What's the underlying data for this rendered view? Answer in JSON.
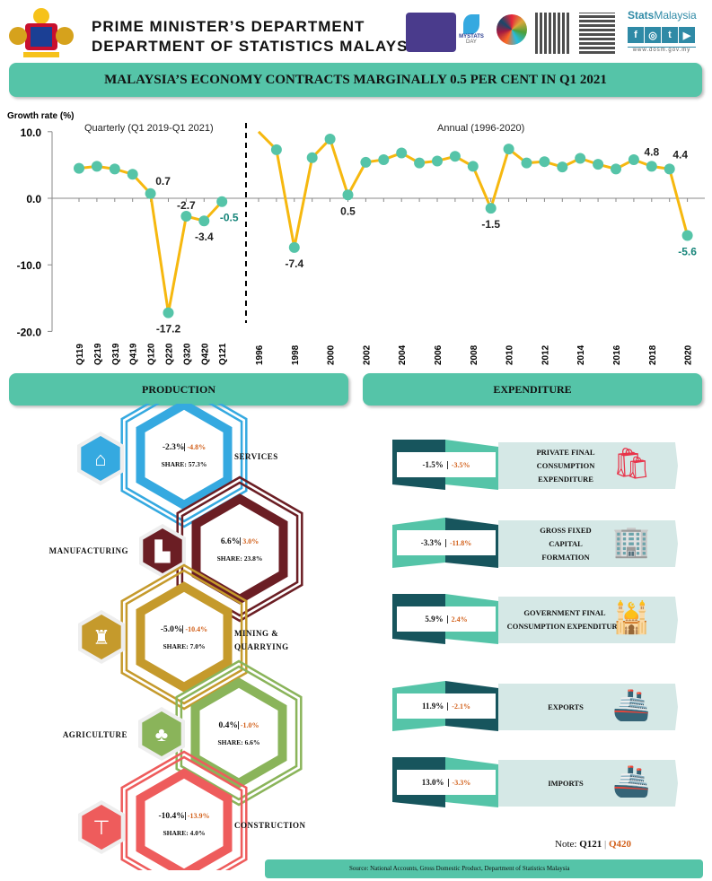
{
  "header": {
    "line1": "PRIME MINISTER’S DEPARTMENT",
    "line2": "DEPARTMENT OF STATISTICS MALAYSIA",
    "logos": [
      "census-2020-logo",
      "mystats-day-logo",
      "sdg-logo",
      "qr-code-icon",
      "qr-code-facebook-icon"
    ],
    "mystats_text": "MYSTATS",
    "day_text": "DAY",
    "brand_stats": "Stats",
    "brand_malaysia": "Malaysia",
    "website": "www.dosm.gov.my",
    "social_icons": [
      "facebook-icon",
      "instagram-icon",
      "twitter-icon",
      "youtube-icon"
    ]
  },
  "title": "MALAYSIA’S ECONOMY CONTRACTS MARGINALLY 0.5 PER CENT IN Q1 2021",
  "chart_data": {
    "type": "line",
    "ylabel": "Growth rate (%)",
    "ylim": [
      -20,
      10
    ],
    "yticks": [
      "10.0",
      "0.0",
      "-10.0",
      "-20.0"
    ],
    "line_color": "#f6b80f",
    "marker_color": "#55c4a8",
    "highlight_label_color": "#17857a",
    "quarterly": {
      "subtitle": "Quarterly (Q1 2019-Q1 2021)",
      "x": [
        "Q119",
        "Q219",
        "Q319",
        "Q419",
        "Q120",
        "Q220",
        "Q320",
        "Q420",
        "Q121"
      ],
      "values": [
        4.5,
        4.8,
        4.4,
        3.6,
        0.7,
        -17.2,
        -2.7,
        -3.4,
        -0.5
      ],
      "labels": {
        "Q120": "0.7",
        "Q220": "-17.2",
        "Q320": "-2.7",
        "Q420": "-3.4",
        "Q121": "-0.5"
      }
    },
    "annual": {
      "subtitle": "Annual (1996-2020)",
      "x": [
        "1996",
        "1997",
        "1998",
        "1999",
        "2000",
        "2001",
        "2002",
        "2003",
        "2004",
        "2005",
        "2006",
        "2007",
        "2008",
        "2009",
        "2010",
        "2011",
        "2012",
        "2013",
        "2014",
        "2015",
        "2016",
        "2017",
        "2018",
        "2019",
        "2020"
      ],
      "tick_labels": [
        "1996",
        "1998",
        "2000",
        "2002",
        "2004",
        "2006",
        "2008",
        "2010",
        "2012",
        "2014",
        "2016",
        "2018",
        "2020"
      ],
      "values": [
        10.0,
        7.3,
        -7.4,
        6.1,
        8.9,
        0.5,
        5.4,
        5.8,
        6.8,
        5.3,
        5.6,
        6.3,
        4.8,
        -1.5,
        7.4,
        5.3,
        5.5,
        4.7,
        6.0,
        5.1,
        4.4,
        5.8,
        4.8,
        4.4,
        -5.6
      ],
      "labels": {
        "1998": "-7.4",
        "2001": "0.5",
        "2009": "-1.5",
        "2018": "4.8",
        "2019": "4.4",
        "2020": "-5.6"
      }
    }
  },
  "production": {
    "heading": "PRODUCTION",
    "sectors": [
      {
        "name": "SERVICES",
        "growth": "-2.3%",
        "prev": "-4.8%",
        "share": "SHARE: 57.3%",
        "color": "#35a9e0",
        "icon": "services-icon"
      },
      {
        "name": "MANUFACTURING",
        "growth": "6.6%",
        "prev": "3.0%",
        "share": "SHARE: 23.8%",
        "color": "#6b1e24",
        "icon": "factory-icon"
      },
      {
        "name": "MINING &",
        "name2": "QUARRYING",
        "growth": "-5.0%",
        "prev": "-10.4%",
        "share": "SHARE: 7.0%",
        "color": "#c59a2c",
        "icon": "oil-rig-icon"
      },
      {
        "name": "AGRICULTURE",
        "growth": "0.4%",
        "prev": "-1.0%",
        "share": "SHARE: 6.6%",
        "color": "#8ab45a",
        "icon": "palm-tree-icon"
      },
      {
        "name": "CONSTRUCTION",
        "growth": "-10.4%",
        "prev": "-13.9%",
        "share": "SHARE: 4.0%",
        "color": "#ee5c5c",
        "icon": "crane-icon"
      }
    ]
  },
  "expenditure": {
    "heading": "EXPENDITURE",
    "items": [
      {
        "lines": [
          "PRIVATE FINAL",
          "CONSUMPTION",
          "EXPENDITURE"
        ],
        "growth": "-1.5%",
        "prev": "-3.5%",
        "icon": "shopping-bag-hand-icon"
      },
      {
        "lines": [
          "GROSS FIXED",
          "CAPITAL",
          "FORMATION"
        ],
        "growth": "-3.3%",
        "prev": "-11.8%",
        "icon": "buildings-plane-icon"
      },
      {
        "lines": [
          "GOVERNMENT FINAL",
          "CONSUMPTION EXPENDITURE"
        ],
        "growth": "5.9%",
        "prev": "2.4%",
        "icon": "government-building-icon"
      },
      {
        "lines": [
          "EXPORTS"
        ],
        "growth": "11.9%",
        "prev": "-2.1%",
        "icon": "cargo-ship-icon"
      },
      {
        "lines": [
          "IMPORTS"
        ],
        "growth": "13.0%",
        "prev": "-3.3%",
        "icon": "cargo-ship-icon"
      }
    ]
  },
  "note": {
    "prefix": "Note:",
    "current": "Q121",
    "previous": "Q420"
  },
  "source": "Source:  National Accounts, Gross Domestic Product, Department of Statistics Malaysia",
  "colors": {
    "teal": "#55c4a8",
    "dark_teal": "#17555d",
    "light_panel": "#d5e8e6",
    "previous_value": "#d2601a"
  }
}
